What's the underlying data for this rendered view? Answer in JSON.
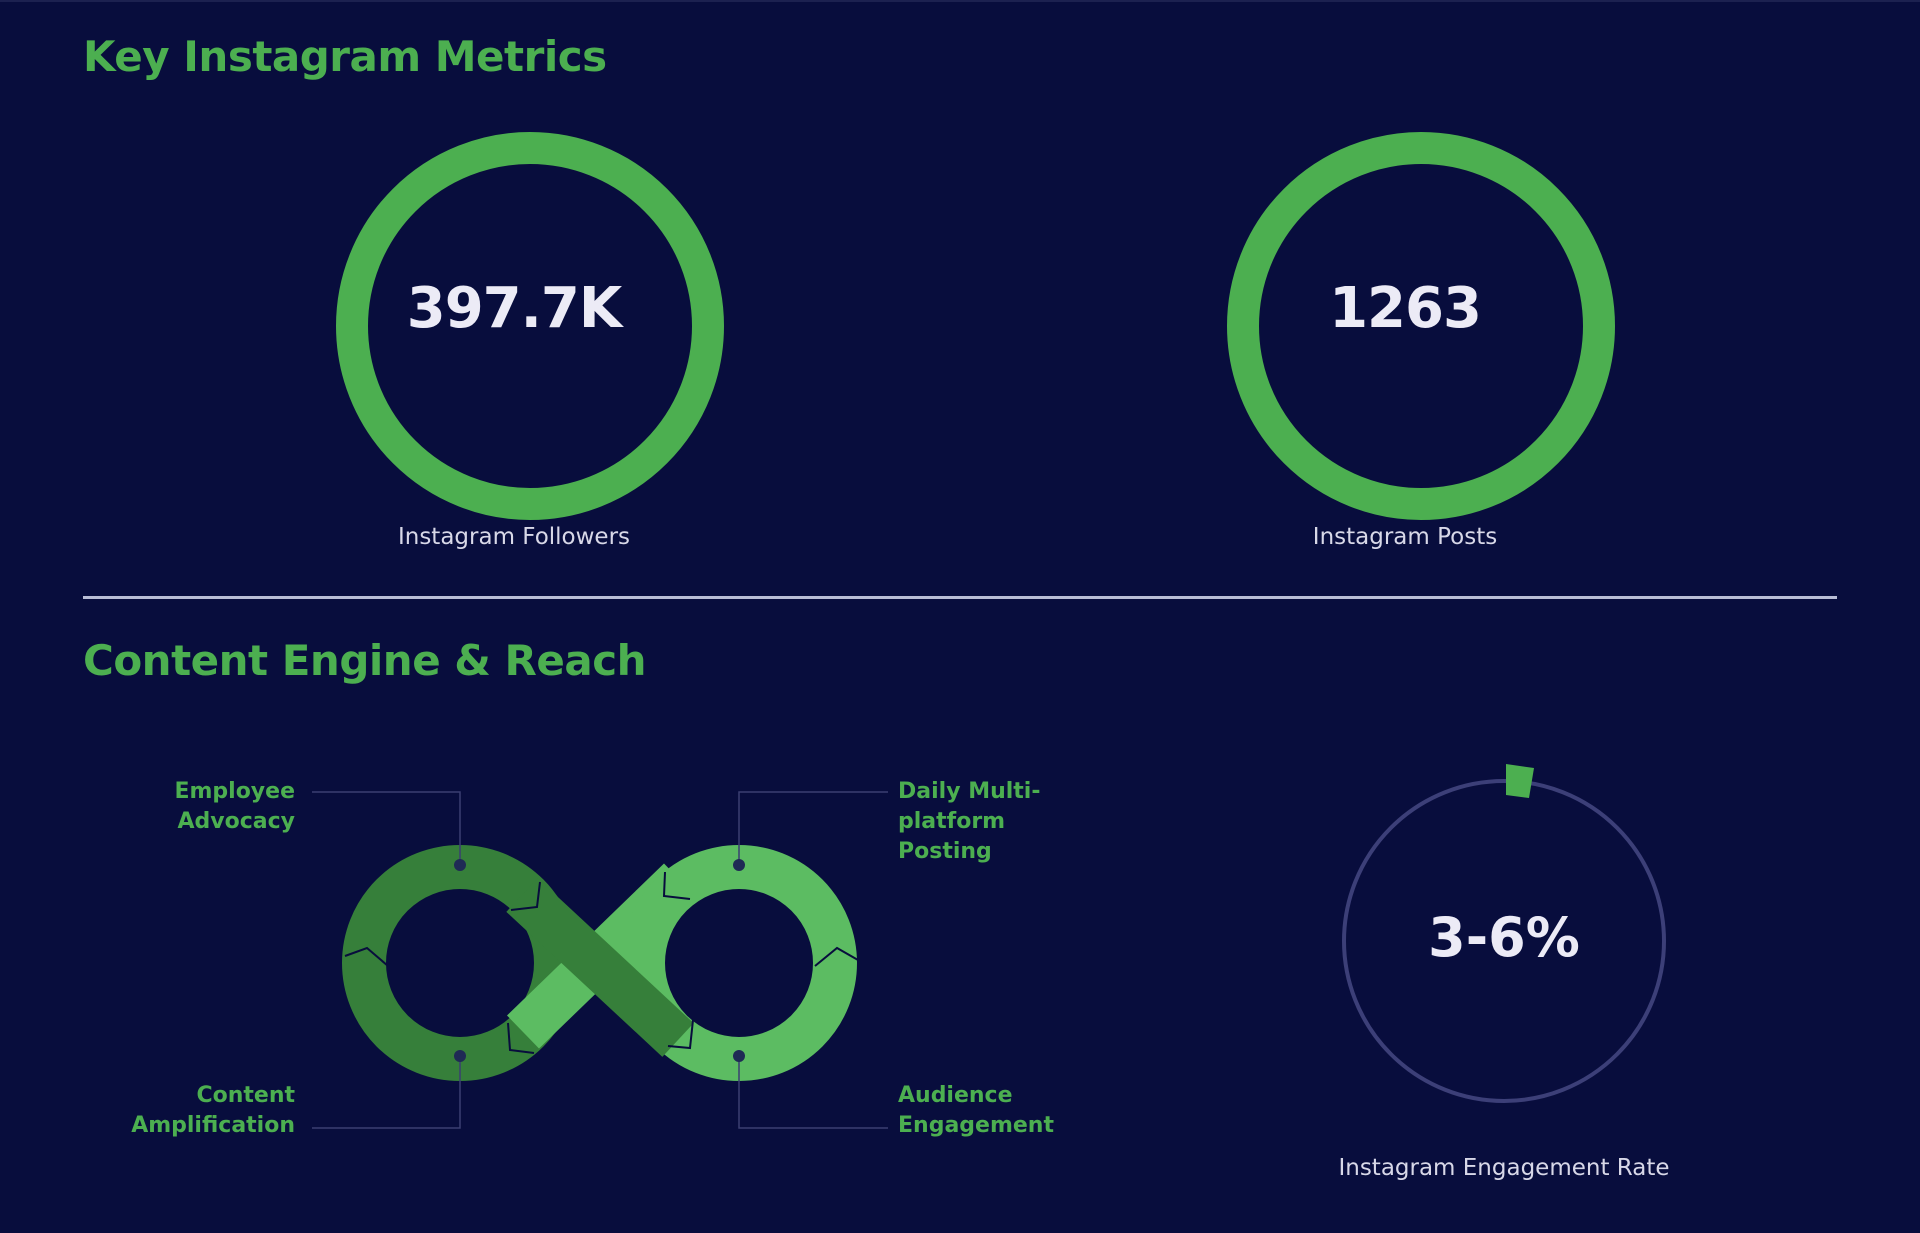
{
  "sections": {
    "metrics_title": "Key Instagram Metrics",
    "content_title": "Content Engine & Reach"
  },
  "metrics": [
    {
      "value": "397.7K",
      "label": "Instagram Followers"
    },
    {
      "value": "1263",
      "label": "Instagram Posts"
    }
  ],
  "infinity_cycle": {
    "nodes": [
      {
        "label_line1": "Employee",
        "label_line2": "Advocacy",
        "label_line3": ""
      },
      {
        "label_line1": "Daily Multi-",
        "label_line2": "platform",
        "label_line3": "Posting"
      },
      {
        "label_line1": "Content",
        "label_line2": "Amplification",
        "label_line3": ""
      },
      {
        "label_line1": "Audience",
        "label_line2": "Engagement",
        "label_line3": ""
      }
    ]
  },
  "engagement": {
    "value": "3-6%",
    "label": "Instagram Engagement Rate"
  },
  "colors": {
    "background": "#080d3d",
    "accent_green": "#4caf50",
    "dark_green": "#367f3a",
    "light_green": "#5cbc62",
    "text_light": "#ecebf6",
    "track": "#3c3f78"
  }
}
